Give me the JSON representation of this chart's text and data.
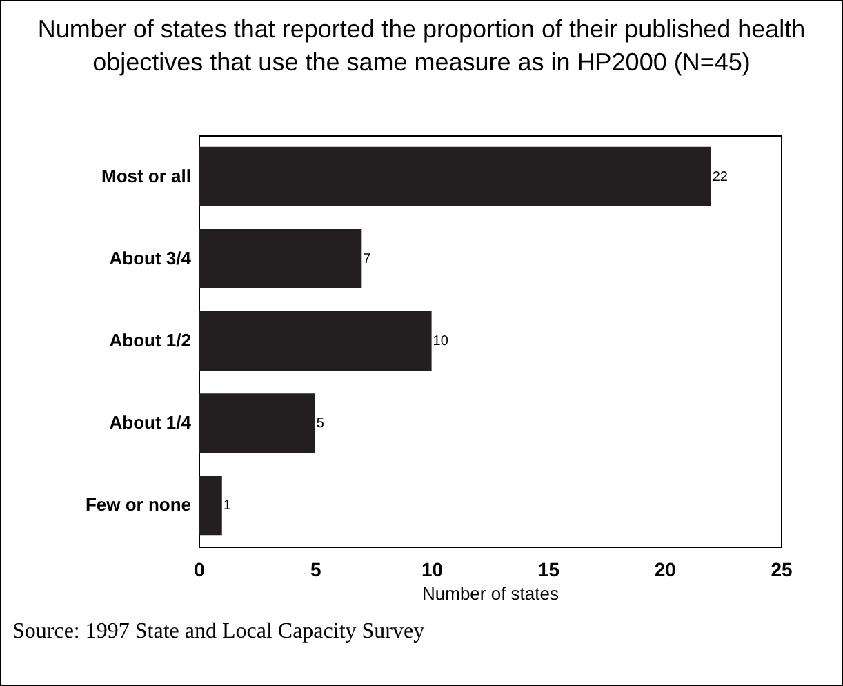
{
  "chart_data": {
    "type": "bar",
    "orientation": "horizontal",
    "title": "Number of states that reported the proportion of their published health objectives that use the same measure as in HP2000 (N=45)",
    "xlabel": "Number of states",
    "categories": [
      "Most or all",
      "About 3/4",
      "About 1/2",
      "About 1/4",
      "Few or none"
    ],
    "values": [
      22,
      7,
      10,
      5,
      1
    ],
    "color": "#231f20",
    "data_labels": true,
    "xlim": [
      0,
      25
    ],
    "xticks": [
      0,
      5,
      10,
      15,
      20,
      25
    ],
    "grid": false,
    "annotations": [
      "Source:  1997 State and Local Capacity Survey"
    ]
  }
}
